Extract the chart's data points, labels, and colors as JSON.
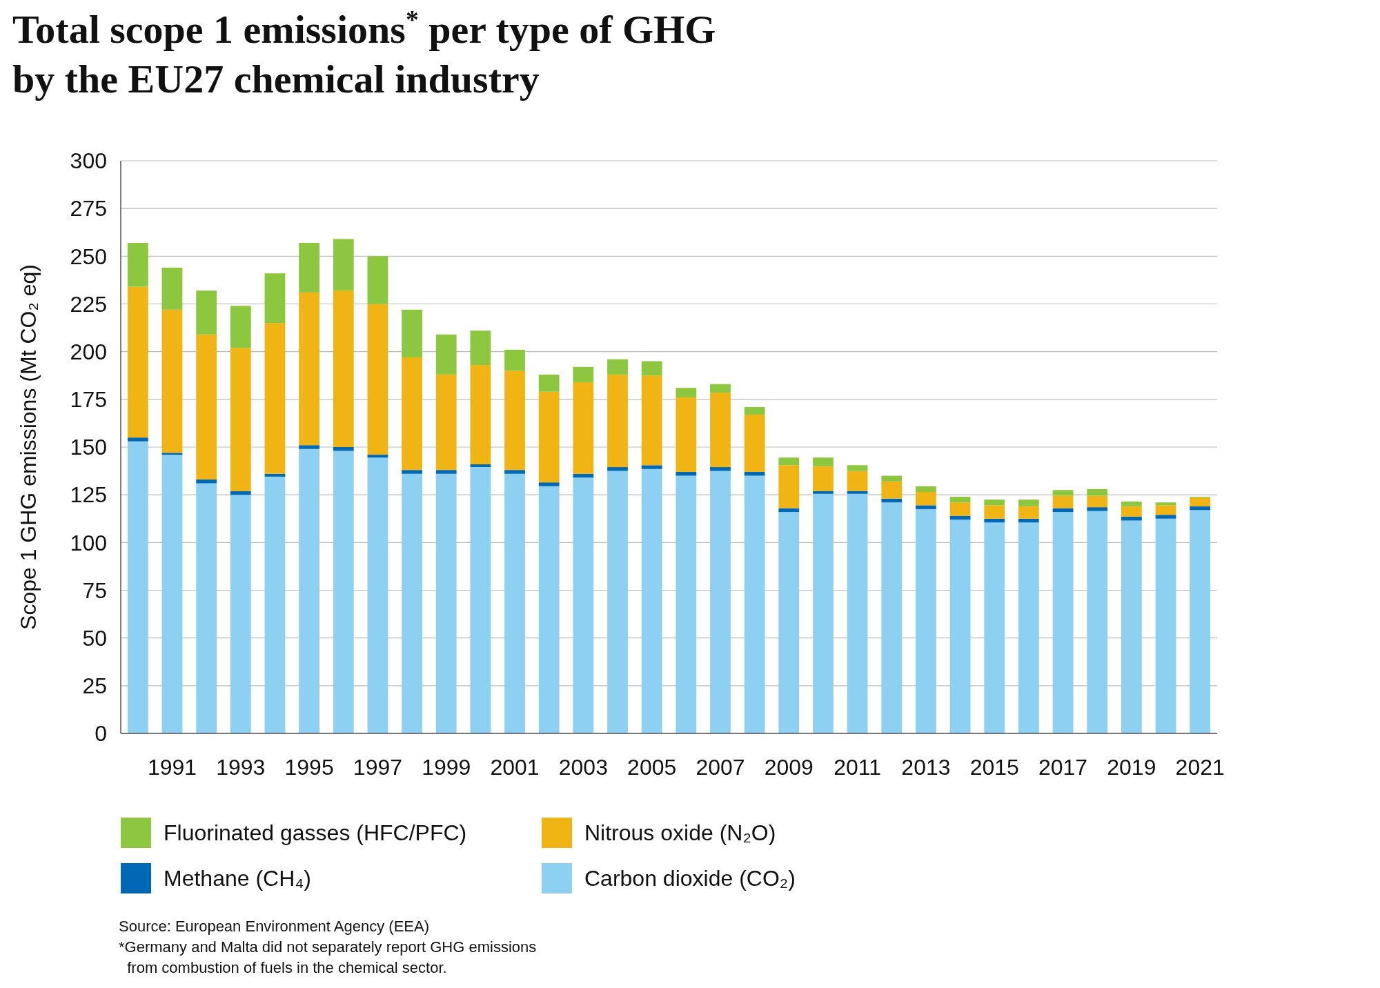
{
  "chart_data": {
    "type": "bar",
    "stacked": true,
    "title": "Total scope 1 emissions$^{*}$ per type of GHG\nby the EU27 chemical industry",
    "ylabel": "Scope 1 GHG emissions (Mt CO₂ eq)",
    "categories": [
      null,
      "1991",
      null,
      "1993",
      null,
      "1995",
      null,
      "1997",
      null,
      "1999",
      null,
      "2001",
      null,
      "2003",
      null,
      "2005",
      null,
      "2007",
      null,
      "2009",
      null,
      "2011",
      null,
      "2013",
      null,
      "2015",
      null,
      "2017",
      null,
      "2019",
      null,
      "2021"
    ],
    "series": [
      {
        "name": "Carbon dioxide (CO₂)",
        "color": "#8dd0f2",
        "values": [
          153,
          146,
          131,
          125,
          134.5,
          149,
          148,
          144.5,
          136,
          136,
          139.5,
          136,
          129.5,
          134,
          137.5,
          138.5,
          135,
          137.5,
          135,
          116,
          125.5,
          125.5,
          121,
          117.5,
          112,
          110.5,
          110.5,
          116,
          116.5,
          111.5,
          112.5,
          117
        ]
      },
      {
        "name": "Methane (CH₄)",
        "color": "#0068b4",
        "values": [
          2,
          1,
          2,
          2,
          1.5,
          2,
          2,
          1.5,
          2,
          2,
          1.5,
          2,
          2,
          2,
          2,
          2,
          2,
          2,
          2,
          2,
          1.5,
          1.5,
          2,
          2,
          2,
          2,
          2,
          2,
          2,
          2,
          2,
          2
        ]
      },
      {
        "name": "Nitrous oxide (N₂O)",
        "color": "#f0b414",
        "values": [
          79,
          75,
          76,
          75,
          79,
          80,
          82,
          79,
          59,
          50,
          52,
          52,
          47.5,
          48,
          48.5,
          47,
          39,
          39,
          30,
          22.5,
          13,
          10.5,
          9,
          7,
          7,
          7,
          6.5,
          6.5,
          6,
          5.5,
          5,
          4.5
        ]
      },
      {
        "name": "Fluorinated gasses (HFC/PFC)",
        "color": "#8dc63f",
        "values": [
          23,
          22,
          23,
          22,
          26,
          26,
          27,
          25,
          25,
          21,
          18,
          11,
          9,
          8,
          8,
          7.5,
          5,
          4.5,
          4,
          4,
          4.5,
          3,
          3,
          3,
          3,
          3,
          3.5,
          3,
          3.5,
          2.5,
          1.5,
          0.5
        ]
      }
    ],
    "ylim": [
      0,
      300
    ],
    "yticks": [
      0,
      25,
      50,
      75,
      100,
      125,
      150,
      175,
      200,
      225,
      250,
      275,
      300
    ],
    "grid": "y",
    "legend": "bottom",
    "annotations": [
      "Source: European Environment Agency (EEA)",
      "*Germany and Malta did not separately report GHG emissions\n  from combustion of fuels in the chemical sector."
    ]
  }
}
